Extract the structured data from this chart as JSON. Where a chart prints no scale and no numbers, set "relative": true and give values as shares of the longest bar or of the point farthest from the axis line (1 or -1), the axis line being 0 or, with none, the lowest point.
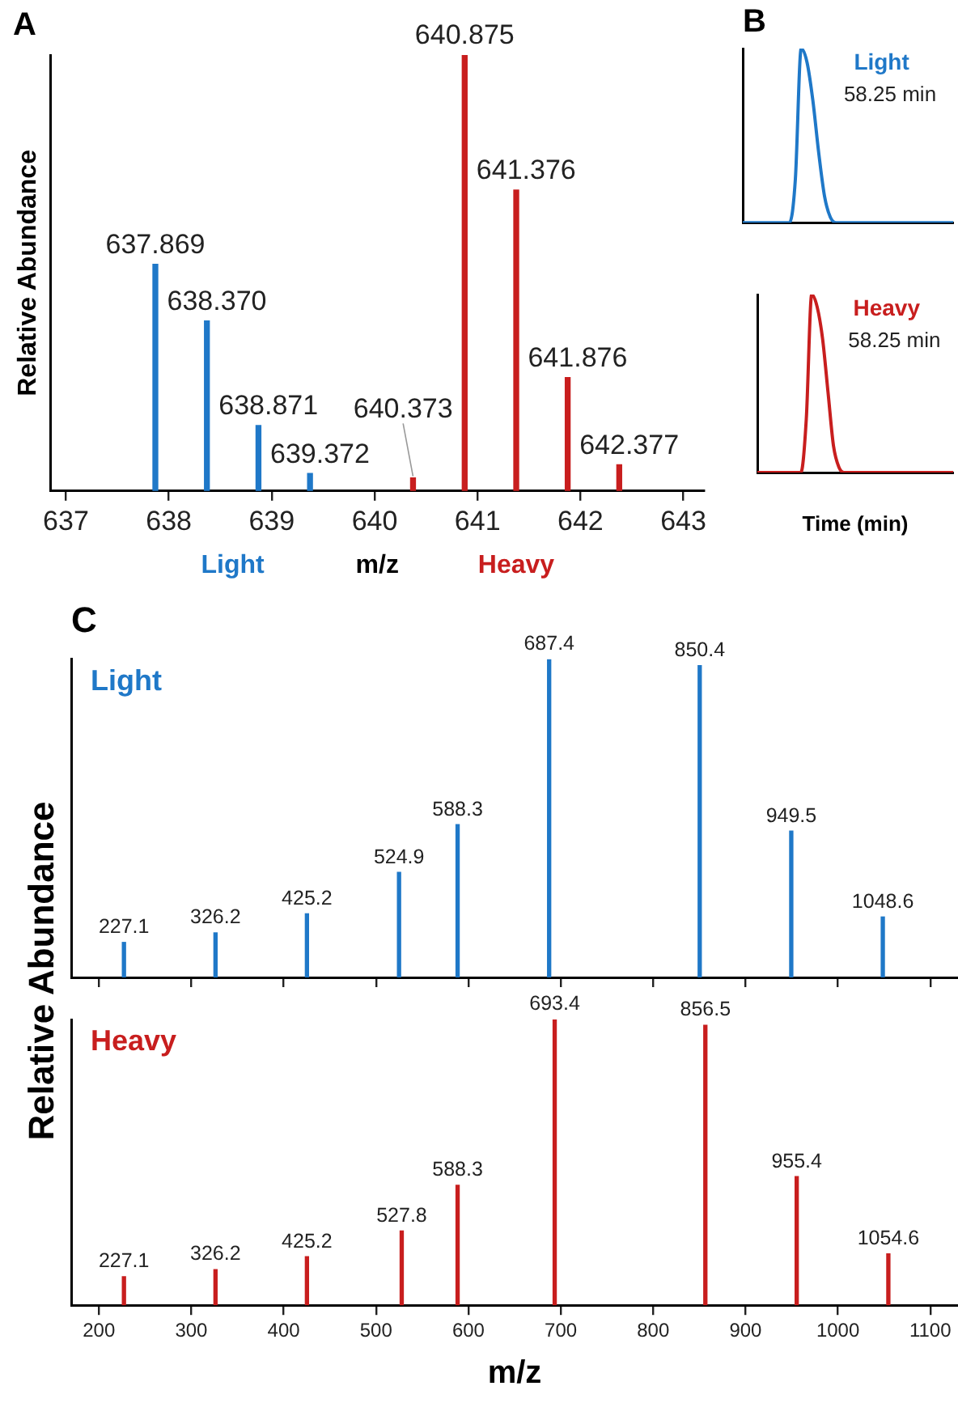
{
  "chart_data": [
    {
      "type": "bar",
      "title": "A",
      "xlabel": "m/z",
      "ylabel": "Relative Abundance",
      "relative": true,
      "xlim": [
        636.85,
        643.2
      ],
      "xticks": [
        637,
        638,
        639,
        640,
        641,
        642,
        643
      ],
      "series": [
        {
          "name": "Light",
          "color": "#1f78c8",
          "x": [
            637.869,
            638.37,
            638.871,
            639.372
          ],
          "values": [
            0.52,
            0.39,
            0.15,
            0.04
          ]
        },
        {
          "name": "Heavy",
          "color": "#c81e1e",
          "x": [
            640.373,
            640.875,
            641.376,
            641.876,
            642.377
          ],
          "values": [
            0.03,
            1,
            0.69,
            0.26,
            0.06
          ]
        }
      ],
      "annotations": [
        {
          "text": "637.869",
          "x": 637.869,
          "y": 0.52
        },
        {
          "text": "638.370",
          "x": 638.37,
          "y": 0.39
        },
        {
          "text": "638.871",
          "x": 638.871,
          "y": 0.15
        },
        {
          "text": "639.372",
          "x": 639.372,
          "y": 0.04
        },
        {
          "text": "640.373",
          "x": 640.373,
          "y": 0.03
        },
        {
          "text": "640.875",
          "x": 640.875,
          "y": 1
        },
        {
          "text": "641.376",
          "x": 641.376,
          "y": 0.69
        },
        {
          "text": "641.876",
          "x": 641.876,
          "y": 0.26
        },
        {
          "text": "642.377",
          "x": 642.377,
          "y": 0.06
        }
      ]
    },
    {
      "type": "line",
      "title": "B",
      "relative": true,
      "marker": "none",
      "categories": [
        null,
        null,
        null,
        null,
        null,
        null,
        null,
        null,
        null,
        null,
        null,
        null,
        null,
        null,
        null,
        null,
        null,
        null,
        null,
        null,
        null,
        null,
        null,
        null,
        null,
        null,
        null,
        null,
        null,
        null,
        null,
        null,
        null,
        null,
        null,
        null,
        null
      ],
      "annotations": [
        "58.25 min"
      ],
      "series": [
        {
          "name": "Light",
          "color": "#1f78c8",
          "values": [
            0,
            0,
            0,
            0,
            0,
            0,
            0,
            0,
            0,
            0.25,
            1,
            0.92,
            0.7,
            0.4,
            0.15,
            0.03,
            0,
            0,
            0,
            0,
            0,
            0,
            0,
            0,
            0,
            0,
            0,
            0,
            0,
            0,
            0,
            0,
            0,
            0,
            0,
            0,
            0
          ]
        }
      ]
    },
    {
      "type": "line",
      "xlabel": "Time (min)",
      "relative": true,
      "marker": "none",
      "categories": [
        null,
        null,
        null,
        null,
        null,
        null,
        null,
        null,
        null,
        null,
        null,
        null,
        null,
        null,
        null,
        null,
        null,
        null,
        null,
        null,
        null,
        null,
        null,
        null,
        null,
        null,
        null,
        null,
        null,
        null,
        null,
        null,
        null,
        null,
        null,
        null,
        null
      ],
      "annotations": [
        "58.25 min"
      ],
      "series": [
        {
          "name": "Heavy",
          "color": "#c81e1e",
          "values": [
            0,
            0,
            0,
            0,
            0,
            0,
            0,
            0,
            0,
            0.3,
            1,
            0.93,
            0.75,
            0.45,
            0.15,
            0.03,
            0,
            0,
            0,
            0,
            0,
            0,
            0,
            0,
            0,
            0,
            0,
            0,
            0,
            0,
            0,
            0,
            0,
            0,
            0,
            0,
            0
          ]
        }
      ]
    },
    {
      "type": "bar",
      "title": "C",
      "ylabel": "Relative Abundance",
      "relative": true,
      "tick_labels": false,
      "xlim": [
        170,
        1130
      ],
      "xticks": [
        200,
        300,
        400,
        500,
        600,
        700,
        800,
        900,
        1000,
        1100
      ],
      "series": [
        {
          "name": "Light",
          "color": "#1f78c8",
          "x": [
            227.1,
            326.2,
            425.2,
            524.9,
            588.3,
            687.4,
            850.4,
            949.5,
            1048.6
          ],
          "values": [
            0.11,
            0.14,
            0.2,
            0.33,
            0.48,
            1,
            0.98,
            0.46,
            0.19
          ]
        }
      ],
      "annotations": [
        {
          "text": "227.1",
          "x": 227.1,
          "y": 0.11
        },
        {
          "text": "326.2",
          "x": 326.2,
          "y": 0.14
        },
        {
          "text": "425.2",
          "x": 425.2,
          "y": 0.2
        },
        {
          "text": "524.9",
          "x": 524.9,
          "y": 0.33
        },
        {
          "text": "588.3",
          "x": 588.3,
          "y": 0.48
        },
        {
          "text": "687.4",
          "x": 687.4,
          "y": 1
        },
        {
          "text": "850.4",
          "x": 850.4,
          "y": 0.98
        },
        {
          "text": "949.5",
          "x": 949.5,
          "y": 0.46
        },
        {
          "text": "1048.6",
          "x": 1048.6,
          "y": 0.19
        }
      ]
    },
    {
      "type": "bar",
      "xlabel": "m/z",
      "relative": true,
      "xlim": [
        170,
        1130
      ],
      "xticks": [
        200,
        300,
        400,
        500,
        600,
        700,
        800,
        900,
        1000,
        1100
      ],
      "series": [
        {
          "name": "Heavy",
          "color": "#c81e1e",
          "x": [
            227.1,
            326.2,
            425.2,
            527.8,
            588.3,
            693.4,
            856.5,
            955.4,
            1054.6
          ],
          "values": [
            0.1,
            0.125,
            0.17,
            0.26,
            0.42,
            1,
            0.98,
            0.45,
            0.18
          ]
        }
      ],
      "annotations": [
        {
          "text": "227.1",
          "x": 227.1,
          "y": 0.1
        },
        {
          "text": "326.2",
          "x": 326.2,
          "y": 0.125
        },
        {
          "text": "425.2",
          "x": 425.2,
          "y": 0.17
        },
        {
          "text": "527.8",
          "x": 527.8,
          "y": 0.26
        },
        {
          "text": "588.3",
          "x": 588.3,
          "y": 0.42
        },
        {
          "text": "693.4",
          "x": 693.4,
          "y": 1
        },
        {
          "text": "856.5",
          "x": 856.5,
          "y": 0.98
        },
        {
          "text": "955.4",
          "x": 955.4,
          "y": 0.45
        },
        {
          "text": "1054.6",
          "x": 1054.6,
          "y": 0.18
        }
      ]
    }
  ]
}
